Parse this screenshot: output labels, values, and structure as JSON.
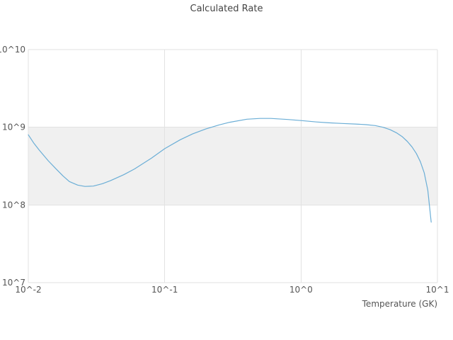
{
  "chart_data": {
    "type": "line",
    "title": "Calculated Rate",
    "xlabel": "Temperature (GK)",
    "ylabel": "",
    "x_scale": "log",
    "y_scale": "log",
    "xlim": [
      0.01,
      10
    ],
    "ylim": [
      10000000.0,
      10000000000.0
    ],
    "x_ticks": [
      0.01,
      0.1,
      1,
      10
    ],
    "y_ticks": [
      10000000.0,
      100000000.0,
      1000000000.0,
      10000000000.0
    ],
    "x_tick_labels": [
      "10^-2",
      "10^-1",
      "10^0",
      "10^1"
    ],
    "y_tick_labels": [
      "10^7",
      "10^8",
      "10^9",
      "10^10"
    ],
    "grid": true,
    "legend": "none",
    "background_color": "#ffffff",
    "line_color": "#6baed6",
    "band": {
      "ymin": 100000000.0,
      "ymax": 1000000000.0,
      "color": "#f0f0f0"
    },
    "series": [
      {
        "name": "calculated-rate",
        "x": [
          0.01,
          0.011,
          0.012,
          0.014,
          0.016,
          0.018,
          0.02,
          0.023,
          0.026,
          0.03,
          0.035,
          0.04,
          0.05,
          0.06,
          0.08,
          0.1,
          0.13,
          0.16,
          0.2,
          0.25,
          0.3,
          0.4,
          0.5,
          0.6,
          0.8,
          1.0,
          1.3,
          1.6,
          2.0,
          2.5,
          3.0,
          3.5,
          4.0,
          4.5,
          5.0,
          5.5,
          6.0,
          6.5,
          7.0,
          7.5,
          8.0,
          8.5,
          9.0
        ],
        "y": [
          800000000.0,
          620000000.0,
          510000000.0,
          370000000.0,
          290000000.0,
          235000000.0,
          200000000.0,
          180000000.0,
          173000000.0,
          175000000.0,
          188000000.0,
          205000000.0,
          245000000.0,
          290000000.0,
          400000000.0,
          530000000.0,
          690000000.0,
          820000000.0,
          950000000.0,
          1070000000.0,
          1160000000.0,
          1270000000.0,
          1300000000.0,
          1300000000.0,
          1260000000.0,
          1220000000.0,
          1170000000.0,
          1140000000.0,
          1120000000.0,
          1100000000.0,
          1080000000.0,
          1050000000.0,
          1000000000.0,
          930000000.0,
          850000000.0,
          760000000.0,
          660000000.0,
          560000000.0,
          460000000.0,
          360000000.0,
          260000000.0,
          155000000.0,
          60000000.0
        ]
      }
    ]
  }
}
